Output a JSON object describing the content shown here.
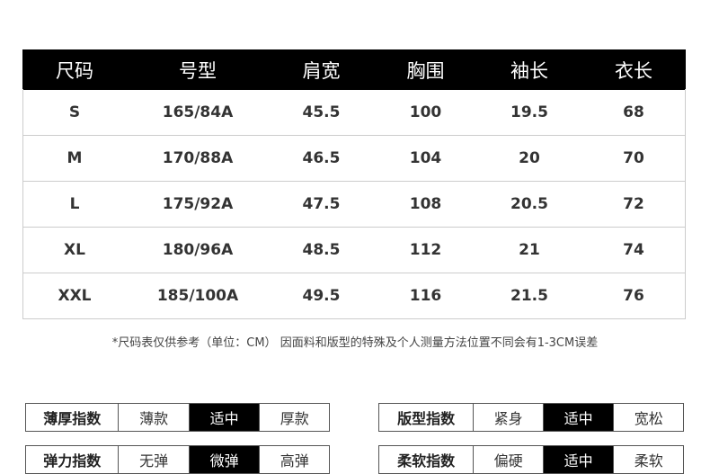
{
  "table": {
    "header": [
      "尺码",
      "号型",
      "肩宽",
      "胸围",
      "袖长",
      "衣长"
    ],
    "rows": [
      [
        "S",
        "165/84A",
        45.5,
        100,
        19.5,
        68
      ],
      [
        "M",
        "170/88A",
        46.5,
        104,
        20,
        70
      ],
      [
        "L",
        "175/92A",
        47.5,
        108,
        20.5,
        72
      ],
      [
        "XL",
        "180/96A",
        48.5,
        112,
        21,
        74
      ],
      [
        "XXL",
        "185/100A",
        49.5,
        116,
        21.5,
        76
      ]
    ]
  },
  "note": "*尺码表仅供参考（单位：CM） 因面料和版型的特殊及个人测量方法位置不同会有1-3CM误差",
  "indices": [
    {
      "label": "薄厚指数",
      "options": [
        "薄款",
        "适中",
        "厚款"
      ],
      "selected": 1
    },
    {
      "label": "版型指数",
      "options": [
        "紧身",
        "适中",
        "宽松"
      ],
      "selected": 1
    },
    {
      "label": "弹力指数",
      "options": [
        "无弹",
        "微弹",
        "高弹"
      ],
      "selected": 1
    },
    {
      "label": "柔软指数",
      "options": [
        "偏硬",
        "适中",
        "柔软"
      ],
      "selected": 1
    }
  ]
}
